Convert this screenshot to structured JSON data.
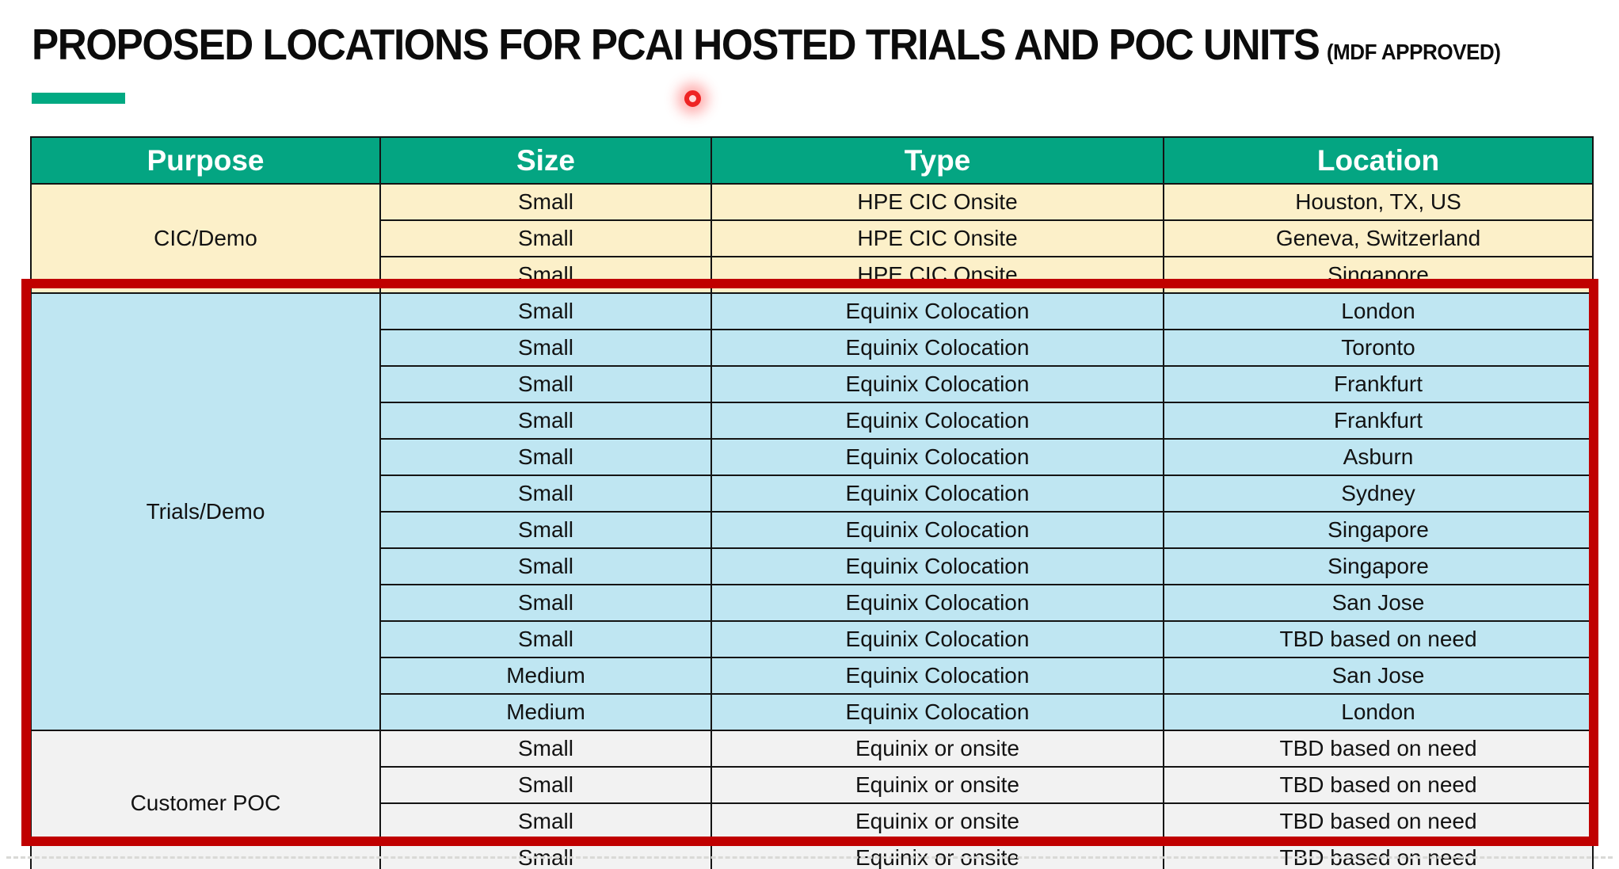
{
  "title": {
    "main": "PROPOSED LOCATIONS FOR PCAI HOSTED TRIALS AND POC UNITS",
    "suffix": "(MDF APPROVED)"
  },
  "colors": {
    "accent_green": "#01A982",
    "header_green": "#04A582",
    "cic_section_bg": "#FCF0C9",
    "trials_section_bg": "#BFE6F2",
    "poc_section_bg": "#F2F2F2",
    "highlight_border_red": "#C00000",
    "laser_dot_red": "#EE2424"
  },
  "table": {
    "headers": [
      "Purpose",
      "Size",
      "Type",
      "Location"
    ],
    "sections": [
      {
        "purpose": "CIC/Demo",
        "highlighted": false,
        "rows": [
          {
            "size": "Small",
            "type": "HPE CIC Onsite",
            "location": "Houston, TX, US"
          },
          {
            "size": "Small",
            "type": "HPE CIC Onsite",
            "location": "Geneva, Switzerland"
          },
          {
            "size": "Small",
            "type": "HPE CIC Onsite",
            "location": "Singapore"
          }
        ]
      },
      {
        "purpose": "Trials/Demo",
        "highlighted": true,
        "rows": [
          {
            "size": "Small",
            "type": "Equinix Colocation",
            "location": "London"
          },
          {
            "size": "Small",
            "type": "Equinix Colocation",
            "location": "Toronto"
          },
          {
            "size": "Small",
            "type": "Equinix Colocation",
            "location": "Frankfurt"
          },
          {
            "size": "Small",
            "type": "Equinix Colocation",
            "location": "Frankfurt"
          },
          {
            "size": "Small",
            "type": "Equinix Colocation",
            "location": "Asburn"
          },
          {
            "size": "Small",
            "type": "Equinix Colocation",
            "location": "Sydney"
          },
          {
            "size": "Small",
            "type": "Equinix Colocation",
            "location": "Singapore"
          },
          {
            "size": "Small",
            "type": "Equinix Colocation",
            "location": "Singapore"
          },
          {
            "size": "Small",
            "type": "Equinix Colocation",
            "location": "San Jose"
          },
          {
            "size": "Small",
            "type": "Equinix Colocation",
            "location": "TBD based on need"
          },
          {
            "size": "Medium",
            "type": "Equinix Colocation",
            "location": "San Jose"
          },
          {
            "size": "Medium",
            "type": "Equinix Colocation",
            "location": "London"
          }
        ]
      },
      {
        "purpose": "Customer POC",
        "highlighted": true,
        "rows": [
          {
            "size": "Small",
            "type": "Equinix or onsite",
            "location": "TBD based on need"
          },
          {
            "size": "Small",
            "type": "Equinix or onsite",
            "location": "TBD based on need"
          },
          {
            "size": "Small",
            "type": "Equinix or onsite",
            "location": "TBD based on need"
          },
          {
            "size": "Small",
            "type": "Equinix or onsite",
            "location": "TBD based on need"
          }
        ]
      }
    ]
  },
  "annotations": {
    "laser_pointer": "laser-pointer-dot",
    "red_frame_note": "red rectangle highlighting Trials/Demo and Customer POC sections"
  }
}
